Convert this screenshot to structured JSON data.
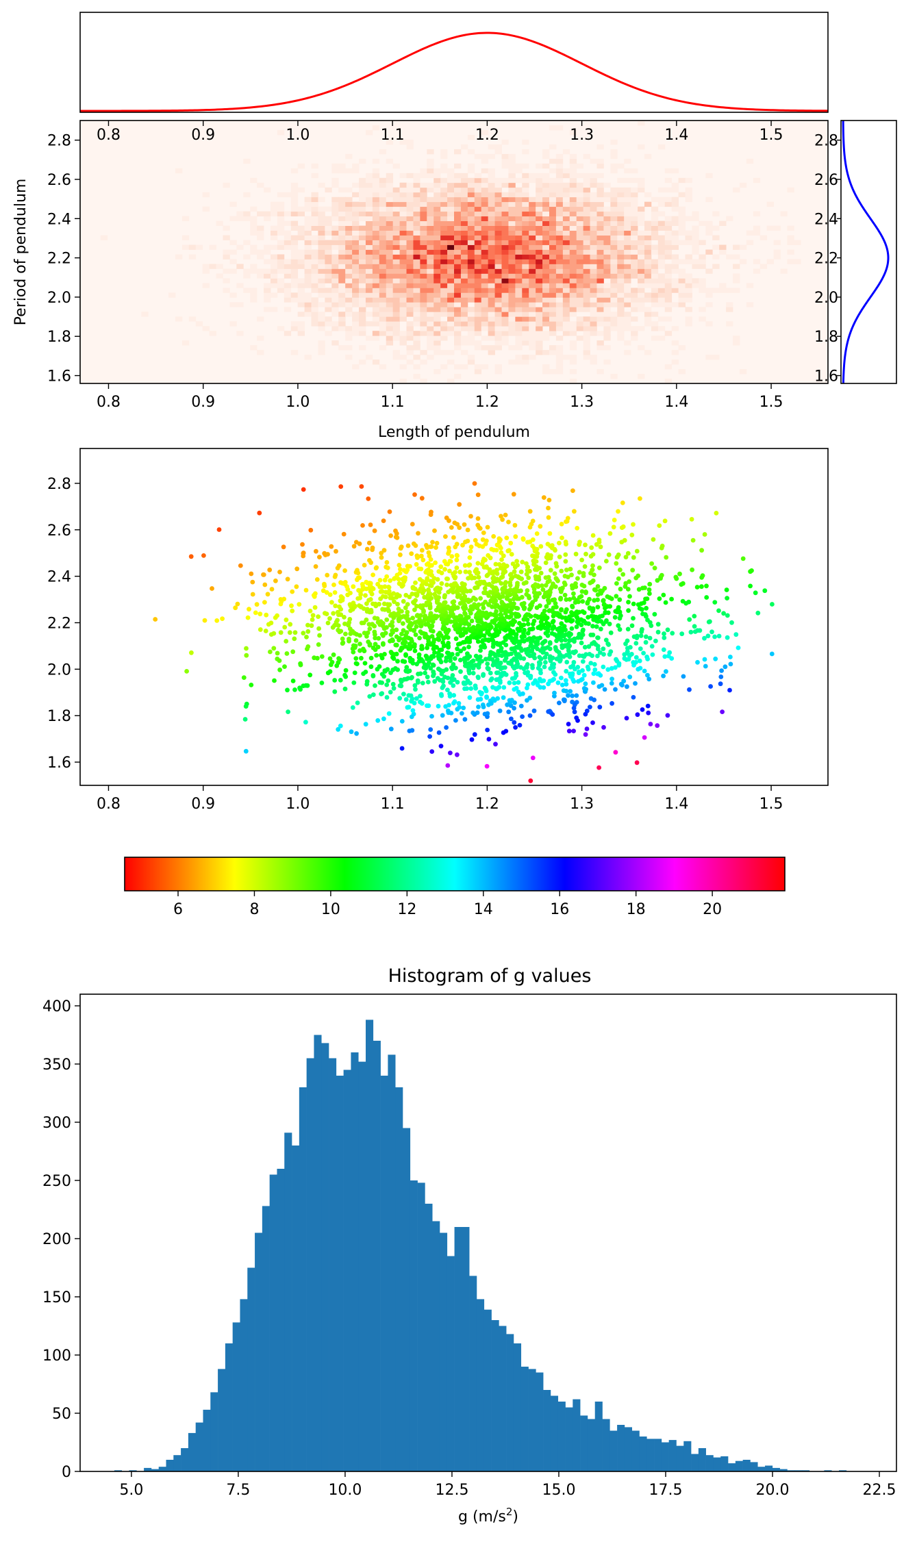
{
  "chart_data": [
    {
      "id": "marginal_x",
      "type": "line",
      "description_visible": "normal density curve along length",
      "xlim": [
        0.77,
        1.56
      ],
      "series": [
        {
          "color": "#ff0000",
          "mean": 1.2,
          "sd": 0.1
        }
      ],
      "grid": false
    },
    {
      "id": "heatmap",
      "type": "heatmap",
      "colormap": "Reds",
      "xlabel": "Length of pendulum",
      "ylabel": "Period of pendulum",
      "xlim": [
        0.77,
        1.56
      ],
      "ylim": [
        1.56,
        2.9
      ],
      "xticks": [
        "0.8",
        "0.9",
        "1.0",
        "1.1",
        "1.2",
        "1.3",
        "1.4",
        "1.5"
      ],
      "yticks": [
        "1.6",
        "1.8",
        "2.0",
        "2.2",
        "2.4",
        "2.6",
        "2.8"
      ],
      "center": {
        "x": 1.2,
        "y": 2.2
      },
      "spread": {
        "x": 0.1,
        "y": 0.2
      }
    },
    {
      "id": "marginal_y",
      "type": "line",
      "ylim": [
        1.56,
        2.9
      ],
      "yticks": [
        "1.6",
        "1.8",
        "2.0",
        "2.2",
        "2.4",
        "2.6",
        "2.8"
      ],
      "series": [
        {
          "color": "#0000ff",
          "mean": 2.2,
          "sd": 0.2
        }
      ]
    },
    {
      "id": "scatter",
      "type": "scatter",
      "colormap": "hsv",
      "color_value": "g",
      "xlim": [
        0.77,
        1.56
      ],
      "ylim": [
        1.5,
        2.95
      ],
      "xticks": [
        "0.8",
        "0.9",
        "1.0",
        "1.1",
        "1.2",
        "1.3",
        "1.4",
        "1.5"
      ],
      "yticks": [
        "1.6",
        "1.8",
        "2.0",
        "2.2",
        "2.4",
        "2.6",
        "2.8"
      ],
      "center": {
        "x": 1.2,
        "y": 2.2
      },
      "spread": {
        "x": 0.1,
        "y": 0.2
      },
      "n_points_approx": 10000
    },
    {
      "id": "colorbar",
      "type": "colorbar",
      "colormap": "hsv",
      "range": [
        4.6,
        21.9
      ],
      "ticks": [
        "6",
        "8",
        "10",
        "12",
        "14",
        "16",
        "18",
        "20"
      ]
    },
    {
      "id": "histogram",
      "type": "bar",
      "title": "Histogram of g values",
      "xlabel": "g (m/s",
      "xlabel_sup": "2",
      "xlabel_end": ")",
      "xlim": [
        3.8,
        22.9
      ],
      "ylim": [
        0,
        410
      ],
      "xticks": [
        "5.0",
        "7.5",
        "10.0",
        "12.5",
        "15.0",
        "17.5",
        "20.0",
        "22.5"
      ],
      "yticks": [
        "0",
        "50",
        "100",
        "150",
        "200",
        "250",
        "300",
        "350",
        "400"
      ],
      "color": "#1f77b4",
      "bin_start": 4.6,
      "bin_width": 0.173,
      "counts": [
        1,
        0,
        1,
        0,
        3,
        2,
        4,
        10,
        14,
        20,
        33,
        42,
        53,
        68,
        88,
        110,
        128,
        148,
        175,
        205,
        228,
        255,
        260,
        291,
        280,
        330,
        355,
        375,
        368,
        355,
        340,
        345,
        360,
        352,
        388,
        370,
        340,
        358,
        330,
        295,
        250,
        248,
        230,
        215,
        205,
        185,
        210,
        210,
        168,
        148,
        139,
        130,
        125,
        118,
        110,
        90,
        88,
        85,
        70,
        65,
        60,
        55,
        62,
        48,
        45,
        60,
        45,
        35,
        40,
        38,
        35,
        30,
        28,
        28,
        25,
        27,
        22,
        26,
        15,
        20,
        14,
        12,
        13,
        7,
        9,
        10,
        8,
        4,
        5,
        3,
        2,
        1,
        1,
        1,
        0,
        0,
        1,
        0,
        1,
        0
      ]
    }
  ]
}
